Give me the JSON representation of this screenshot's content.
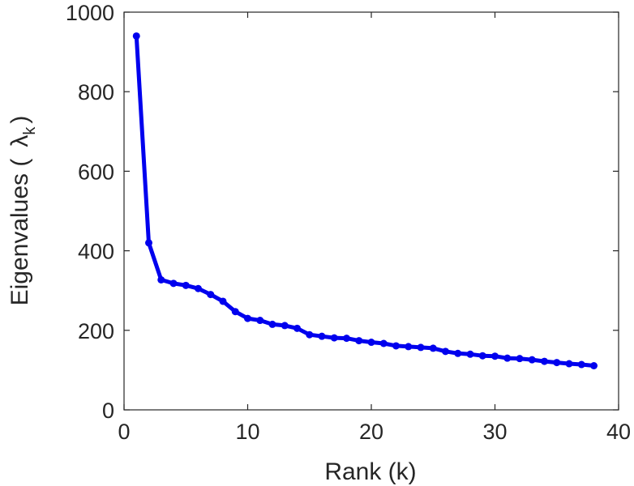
{
  "chart_data": {
    "type": "line",
    "title": "",
    "xlabel": "Rank (k)",
    "ylabel_prefix": "Eigenvalues (",
    "ylabel_symbol": "λ",
    "ylabel_subscript": "k",
    "ylabel_suffix": ")",
    "xlim": [
      0,
      40
    ],
    "ylim": [
      0,
      1000
    ],
    "xticks": [
      0,
      10,
      20,
      30,
      40
    ],
    "yticks": [
      0,
      200,
      400,
      600,
      800,
      1000
    ],
    "grid": false,
    "line_color": "#0000ee",
    "series": [
      {
        "x": [
          1,
          2,
          3,
          4,
          5,
          6,
          7,
          8,
          9,
          10,
          11,
          12,
          13,
          14,
          15,
          16,
          17,
          18,
          19,
          20,
          21,
          22,
          23,
          24,
          25,
          26,
          27,
          28,
          29,
          30,
          31,
          32,
          33,
          34,
          35,
          36,
          37,
          38
        ],
        "values": [
          940,
          420,
          327,
          318,
          313,
          305,
          290,
          273,
          247,
          230,
          225,
          215,
          212,
          205,
          189,
          185,
          181,
          180,
          174,
          170,
          167,
          161,
          159,
          157,
          155,
          147,
          142,
          140,
          136,
          135,
          130,
          129,
          126,
          122,
          119,
          116,
          114,
          111
        ]
      }
    ]
  }
}
